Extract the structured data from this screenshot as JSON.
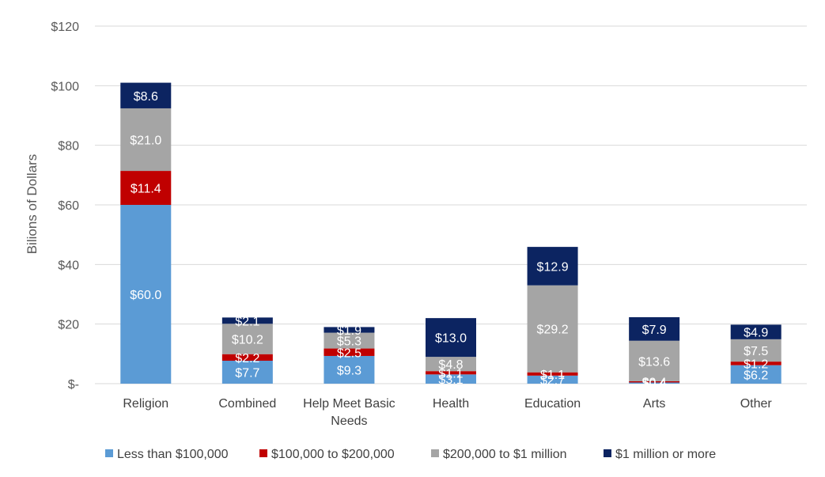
{
  "chart_data": {
    "type": "bar",
    "stacked": true,
    "title": "",
    "xlabel": "",
    "ylabel": "Bilions of Dollars",
    "ylim": [
      0,
      120
    ],
    "yticks": [
      {
        "value": 0,
        "label": "$-"
      },
      {
        "value": 20,
        "label": "$20"
      },
      {
        "value": 40,
        "label": "$40"
      },
      {
        "value": 60,
        "label": "$60"
      },
      {
        "value": 80,
        "label": "$80"
      },
      {
        "value": 100,
        "label": "$100"
      },
      {
        "value": 120,
        "label": "$120"
      }
    ],
    "grid": true,
    "legend_position": "bottom",
    "categories": [
      [
        "Religion"
      ],
      [
        "Combined"
      ],
      [
        "Help Meet Basic",
        "Needs"
      ],
      [
        "Health"
      ],
      [
        "Education"
      ],
      [
        "Arts"
      ],
      [
        "Other"
      ]
    ],
    "series": [
      {
        "name": "Less than $100,000",
        "color": "#5b9bd5",
        "values": [
          60.0,
          7.7,
          9.3,
          3.1,
          2.7,
          0.4,
          6.2
        ],
        "labels": [
          "$60.0",
          "$7.7",
          "$9.3",
          "$3.1",
          "$2.7",
          "$0.4",
          "$6.2"
        ]
      },
      {
        "name": "$100,000 to $200,000",
        "color": "#c00000",
        "values": [
          11.4,
          2.2,
          2.5,
          1.1,
          1.1,
          0.4,
          1.2
        ],
        "labels": [
          "$11.4",
          "$2.2",
          "$2.5",
          "$1.1",
          "$1.1",
          "$0.4",
          "$1.2"
        ]
      },
      {
        "name": "$200,000 to $1 million",
        "color": "#a5a5a5",
        "values": [
          21.0,
          10.2,
          5.3,
          4.8,
          29.2,
          13.6,
          7.5
        ],
        "labels": [
          "$21.0",
          "$10.2",
          "$5.3",
          "$4.8",
          "$29.2",
          "$13.6",
          "$7.5"
        ]
      },
      {
        "name": "$1 million or more",
        "color": "#0c2461",
        "values": [
          8.6,
          2.1,
          1.9,
          13.0,
          12.9,
          7.9,
          4.9
        ],
        "labels": [
          "$8.6",
          "$2.1",
          "$1.9",
          "$13.0",
          "$12.9",
          "$7.9",
          "$4.9"
        ]
      }
    ]
  }
}
